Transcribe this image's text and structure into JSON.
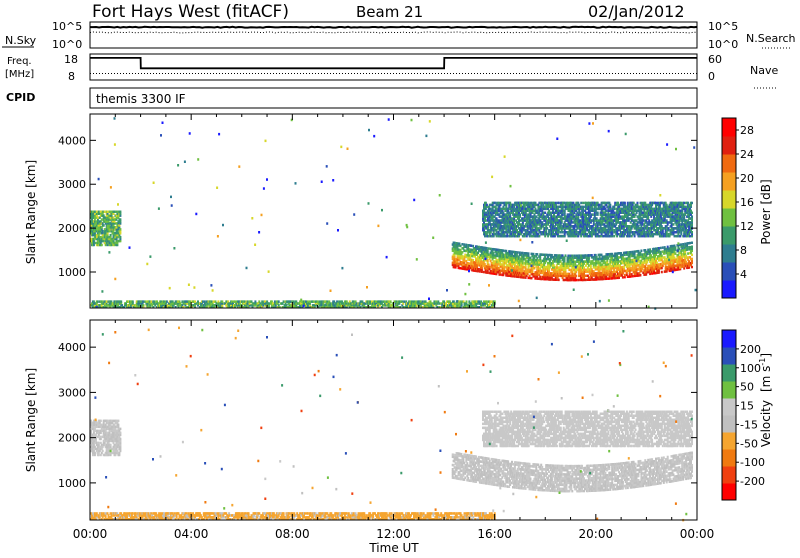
{
  "header": {
    "station": "Fort Hays West (fitACF)",
    "beam": "Beam 21",
    "date": "02/Jan/2012"
  },
  "top_panels": {
    "nsky_label": "N.Sky",
    "nsky_ticks": [
      "10^5",
      "10^0"
    ],
    "nsearch_label": "N.Search",
    "nsearch_ticks": [
      "10^5",
      "10^0"
    ],
    "freq_label_1": "Freq.",
    "freq_label_2": "[MHz]",
    "freq_ticks": [
      "18",
      "8"
    ],
    "nave_label": "Nave",
    "nave_ticks": [
      "60",
      "0"
    ],
    "cpid_label": "CPID",
    "cpid_value": "themis 3300 IF"
  },
  "colors": {
    "power_scale": [
      "#1a1aff",
      "#2a4fb8",
      "#2e7d8f",
      "#3a9a6a",
      "#6fc040",
      "#d7d72a",
      "#f5a020",
      "#f06a10",
      "#e02010",
      "#ff0000"
    ],
    "velocity_scale": [
      "#ff0000",
      "#f04010",
      "#f07a10",
      "#f5a530",
      "#c0c0c0",
      "#c8c8c8",
      "#6fc040",
      "#3a9a6a",
      "#2a4fb8",
      "#1a1aff"
    ]
  },
  "chart_data": [
    {
      "type": "line",
      "title": "N.Sky / N.Search",
      "x": [
        "00:00",
        "04:00",
        "08:00",
        "12:00",
        "16:00",
        "20:00",
        "00:00"
      ],
      "series": [
        {
          "name": "N.Sky",
          "values": [
            10000.0,
            10000.0,
            10000.0,
            10000.0,
            10000.0,
            10000.0,
            10000.0
          ]
        },
        {
          "name": "N.Search",
          "values": [
            1000.0,
            1000.0,
            1000.0,
            1000.0,
            1000.0,
            1000.0,
            1000.0
          ]
        }
      ],
      "ylim_left": [
        "10^0",
        "10^5"
      ],
      "ylim_right": [
        "10^0",
        "10^5"
      ]
    },
    {
      "type": "line",
      "title": "Freq. / Nave",
      "x": [
        "00:00",
        "02:00",
        "02:01",
        "14:00",
        "14:01",
        "24:00"
      ],
      "series": [
        {
          "name": "Freq.",
          "values": [
            16.5,
            16.5,
            12.5,
            12.5,
            16.5,
            16.5
          ]
        },
        {
          "name": "Nave",
          "values": [
            15,
            15,
            15,
            15,
            15,
            15
          ]
        }
      ],
      "ylim_left": [
        8,
        18
      ],
      "ylim_right": [
        0,
        60
      ]
    },
    {
      "type": "heatmap",
      "quantity": "Power",
      "ylabel": "Slant Range [km]",
      "xlabel": "Time UT",
      "x_ticks": [
        "00:00",
        "04:00",
        "08:00",
        "12:00",
        "16:00",
        "20:00",
        "00:00"
      ],
      "y_ticks": [
        1000,
        2000,
        3000,
        4000
      ],
      "ylim": [
        180,
        4600
      ],
      "colorbar_label": "Power [dB]",
      "colorbar_ticks": [
        4,
        8,
        12,
        16,
        20,
        24,
        28
      ],
      "colorbar_range": [
        0,
        30
      ],
      "features": [
        {
          "name": "early scatter",
          "t_start": 0.0,
          "t_end": 1.2,
          "r_min": 1600,
          "r_max": 2400,
          "value": 12
        },
        {
          "name": "main band",
          "t_start": 14.3,
          "t_end": 23.8,
          "r_min": 900,
          "r_max": 1900,
          "value": 24
        },
        {
          "name": "upper band",
          "t_start": 15.5,
          "t_end": 23.8,
          "r_min": 1800,
          "r_max": 2600,
          "value": 8
        },
        {
          "name": "near-range",
          "t_start": 0.0,
          "t_end": 16.0,
          "r_min": 180,
          "r_max": 350,
          "value": 12
        }
      ]
    },
    {
      "type": "heatmap",
      "quantity": "Velocity",
      "ylabel": "Slant Range [km]",
      "xlabel": "Time UT",
      "x_ticks": [
        "00:00",
        "04:00",
        "08:00",
        "12:00",
        "16:00",
        "20:00",
        "00:00"
      ],
      "y_ticks": [
        1000,
        2000,
        3000,
        4000
      ],
      "ylim": [
        180,
        4600
      ],
      "colorbar_label": "Velocity [m s⁻¹]",
      "colorbar_ticks": [
        200,
        100,
        50,
        15,
        -15,
        -50,
        -100,
        -200
      ],
      "colorbar_range": [
        -250,
        250
      ],
      "features": [
        {
          "name": "early scatter",
          "t_start": 0.0,
          "t_end": 1.2,
          "r_min": 1600,
          "r_max": 2400,
          "value": 0
        },
        {
          "name": "main band",
          "t_start": 14.3,
          "t_end": 23.8,
          "r_min": 900,
          "r_max": 1900,
          "value": 0
        },
        {
          "name": "upper band",
          "t_start": 15.5,
          "t_end": 23.8,
          "r_min": 1800,
          "r_max": 2600,
          "value": 20
        },
        {
          "name": "near-range",
          "t_start": 0.0,
          "t_end": 16.0,
          "r_min": 180,
          "r_max": 350,
          "value": -60
        }
      ]
    }
  ],
  "axes": {
    "time_label": "Time UT",
    "range_label": "Slant Range [km]",
    "power_label": "Power [dB]",
    "velocity_label": "Velocity"
  }
}
